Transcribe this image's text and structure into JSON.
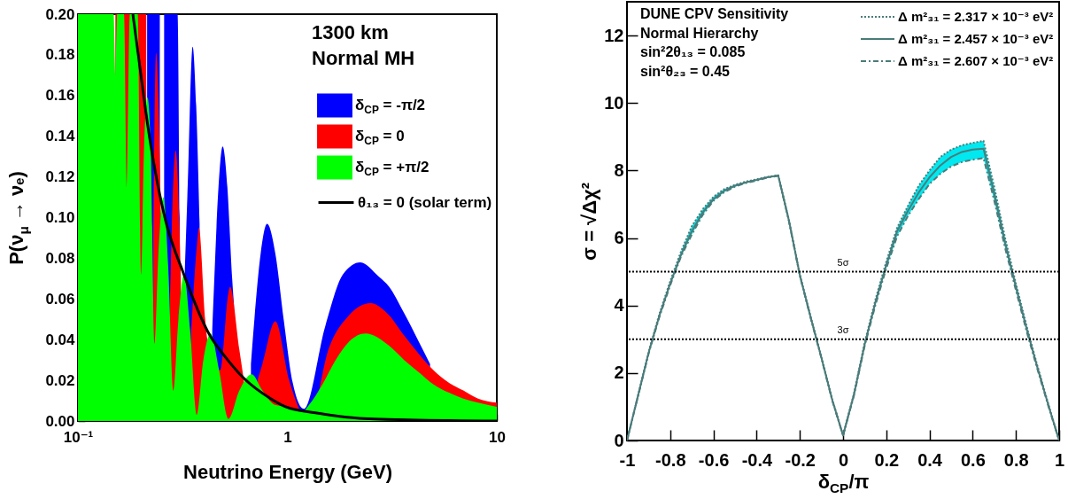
{
  "chart_data": [
    {
      "type": "area",
      "xlabel": "Neutrino Energy (GeV)",
      "ylabel": "P(ν$_{μ}$ → νₑ)",
      "log": "x",
      "xlim": [
        0.1,
        10
      ],
      "xticks": [
        {
          "value": 0.1,
          "label": "10⁻¹"
        },
        1,
        10
      ],
      "ylim": [
        0,
        0.2
      ],
      "yticks": [
        {
          "value": 0,
          "label": "0.00"
        },
        0.02,
        0.04,
        0.06,
        0.08,
        {
          "value": 0.1,
          "label": "0.10"
        },
        0.12,
        0.14,
        0.16,
        0.18,
        {
          "value": 0.2,
          "label": "0.20"
        }
      ],
      "legend": "top right",
      "annotations": [
        "1300 km",
        "Normal MH"
      ],
      "series": [
        {
          "name": "δ$_{CP}$ = -π/2",
          "color": "#0000ff",
          "x": [
            0.214,
            0.246,
            0.252,
            0.258,
            0.299,
            0.306,
            0.315,
            0.324,
            0.333,
            0.353,
            0.367,
            0.381,
            0.41,
            0.438,
            0.448,
            0.469,
            0.491,
            0.517,
            0.545,
            0.556,
            0.61,
            0.67,
            0.696,
            0.747,
            0.8,
            0.877,
            0.96,
            1.06,
            1.2,
            1.52,
            1.84,
            2.23,
            2.73,
            3.06,
            3.61,
            4.24,
            4.8
          ],
          "values": [
            0.2,
            0.2,
            null,
            0.2,
            0.2,
            0.1,
            null,
            0.075,
            0.11,
            0.184,
            0.155,
            0.097,
            null,
            0.045,
            0.07,
            0.115,
            0.135,
            0.115,
            0.07,
            0.057,
            null,
            0.028,
            0.05,
            0.083,
            0.097,
            0.082,
            0.05,
            0.019,
            0.006,
            0.047,
            0.072,
            0.078,
            0.071,
            0.066,
            0.053,
            0.039,
            0.028
          ]
        },
        {
          "name": "δ$_{CP}$ = 0",
          "color": "#ff0000",
          "x": [
            0.151,
            0.171,
            0.197,
            0.205,
            0.212,
            0.219,
            0.229,
            0.236,
            0.25,
            0.264,
            0.275,
            0.293,
            0.31,
            0.331,
            0.347,
            0.369,
            0.378,
            0.405,
            0.415,
            0.478,
            0.523,
            0.532,
            0.59,
            0.62,
            0.661,
            0.72,
            0.76,
            0.876,
            1.02,
            1.27,
            1.58,
            1.97,
            2.49,
            3.06,
            3.61,
            4.24,
            4.99,
            5.88,
            6.92,
            8.14,
            10
          ],
          "values": [
            0.2,
            0.2,
            0.2,
            0.2,
            0.2,
            null,
            0.09,
            0.181,
            0.1,
            null,
            0.06,
            0.133,
            0.07,
            null,
            0.042,
            0.085,
            0.095,
            0.05,
            0.04,
            0.025,
            0.063,
            0.066,
            0.035,
            0.02,
            null,
            0.02,
            0.028,
            0.049,
            0.02,
            0,
            0.036,
            0.052,
            0.058,
            0.052,
            0.042,
            0.033,
            0.025,
            0.019,
            0.015,
            0.011,
            0.009
          ]
        },
        {
          "name": "δ$_{CP}$ = +π/2",
          "color": "#00ff00",
          "x": [
            0.1,
            0.148,
            0.151,
            0.154,
            0.166,
            0.171,
            0.177,
            0.193,
            0.2,
            0.207,
            0.215,
            0.223,
            0.232,
            0.243,
            0.256,
            0.27,
            0.286,
            0.302,
            0.321,
            0.343,
            0.369,
            0.397,
            0.43,
            0.472,
            0.523,
            0.59,
            0.675,
            0.76,
            0.87,
            1.0,
            1.19,
            1.27,
            1.47,
            1.7,
            1.97,
            2.36,
            3.06,
            3.61,
            4.24,
            4.99,
            5.88,
            6.92,
            8.14,
            10
          ],
          "values": [
            0.2,
            0.2,
            0.169,
            0.2,
            0.2,
            0.114,
            0.2,
            0.2,
            0.072,
            0.135,
            0.159,
            0.13,
            0.038,
            0.085,
            0.11,
            0.075,
            0.015,
            0.05,
            0.072,
            0.045,
            0.003,
            0.03,
            0.043,
            0.025,
            0.001,
            0.015,
            0.023,
            0.015,
            0.008,
            0.007,
            0.005,
            0.008,
            0.018,
            0.03,
            0.039,
            0.043,
            0.037,
            0.03,
            0.024,
            0.018,
            0.014,
            0.011,
            0.009,
            0.007
          ]
        },
        {
          "name": "θ₁₃ = 0 (solar term)",
          "type": "line",
          "color": "#000000",
          "x": [
            0.183,
            0.2,
            0.215,
            0.23,
            0.245,
            0.263,
            0.318,
            0.427,
            0.51,
            0.62,
            0.832,
            0.98,
            1.36,
            1.88,
            2.6,
            10
          ],
          "values": [
            0.2,
            0.17,
            0.146,
            0.127,
            0.112,
            0.098,
            0.073,
            0.042,
            0.031,
            0.021,
            0.011,
            0.007,
            0.004,
            0.002,
            0.001,
            0
          ]
        }
      ]
    },
    {
      "type": "line",
      "xlabel": "δ$_{CP}$/π",
      "ylabel": "σ = √Δχ²",
      "xlim": [
        -1,
        1
      ],
      "xticks": [
        -1,
        -0.8,
        -0.6,
        -0.4,
        -0.2,
        0,
        0.2,
        0.4,
        0.6,
        0.8,
        1
      ],
      "ylim": [
        0,
        13
      ],
      "yticks": [
        0,
        2,
        4,
        6,
        8,
        10,
        12
      ],
      "legend": "top right",
      "annotations": [
        "DUNE CPV Sensitivity",
        "Normal Hierarchy",
        "sin²2θ₁₃ = 0.085",
        "sin²θ₂₃ = 0.45"
      ],
      "ref_lines": [
        {
          "axis": "y",
          "value": 5,
          "label": "5σ",
          "color": "#000000",
          "line_style": "dotted"
        },
        {
          "axis": "y",
          "value": 3,
          "label": "3σ",
          "color": "#000000",
          "line_style": "dotted"
        }
      ],
      "x": [
        -1,
        -0.95,
        -0.9,
        -0.85,
        -0.8,
        -0.75,
        -0.7,
        -0.65,
        -0.6,
        -0.55,
        -0.5,
        -0.45,
        -0.4,
        -0.35,
        -0.3,
        -0.25,
        -0.2,
        -0.15,
        -0.1,
        -0.05,
        0,
        0.05,
        0.1,
        0.15,
        0.2,
        0.25,
        0.3,
        0.35,
        0.4,
        0.45,
        0.5,
        0.55,
        0.6,
        0.65,
        0.7,
        0.75,
        0.8,
        0.85,
        0.9,
        0.95,
        1
      ],
      "series": [
        {
          "name": "Δ m²₃₁ = 2.317 × 10⁻³ eV²",
          "color": "#4a7c7a",
          "line_style": "dotted",
          "values": [
            0,
            1.3,
            2.62,
            3.75,
            4.72,
            5.6,
            6.35,
            6.85,
            7.22,
            7.45,
            7.58,
            7.67,
            7.74,
            7.81,
            7.86,
            6.52,
            4.92,
            3.67,
            2.47,
            1.22,
            0.15,
            1.38,
            2.9,
            4.18,
            5.3,
            6.3,
            6.95,
            7.55,
            8.0,
            8.4,
            8.62,
            8.75,
            8.82,
            8.88,
            7.5,
            6.0,
            4.65,
            3.38,
            2.2,
            1.08,
            0
          ]
        },
        {
          "name": "Δ m²₃₁ = 2.457 × 10⁻³ eV²",
          "color": "#4a7c7a",
          "line_style": "solid",
          "values": [
            0,
            1.3,
            2.6,
            3.7,
            4.65,
            5.5,
            6.2,
            6.75,
            7.15,
            7.4,
            7.55,
            7.65,
            7.72,
            7.8,
            7.85,
            6.5,
            4.9,
            3.65,
            2.45,
            1.2,
            0.15,
            1.35,
            2.85,
            4.1,
            5.2,
            6.2,
            6.8,
            7.35,
            7.8,
            8.15,
            8.4,
            8.55,
            8.62,
            8.65,
            7.3,
            5.85,
            4.55,
            3.3,
            2.15,
            1.05,
            0
          ],
          "lower": [
            0,
            1.28,
            2.57,
            3.66,
            4.6,
            5.45,
            6.1,
            6.68,
            7.1,
            7.36,
            7.52,
            7.63,
            7.7,
            7.79,
            7.84,
            6.48,
            4.88,
            3.63,
            2.43,
            1.18,
            0.15,
            1.32,
            2.8,
            4.02,
            5.1,
            6.05,
            6.65,
            7.15,
            7.6,
            7.9,
            8.12,
            8.25,
            8.32,
            8.37,
            7.1,
            5.7,
            4.45,
            3.22,
            2.1,
            1.02,
            0
          ],
          "upper": [
            0,
            1.3,
            2.62,
            3.75,
            4.72,
            5.6,
            6.35,
            6.85,
            7.22,
            7.45,
            7.58,
            7.67,
            7.74,
            7.81,
            7.86,
            6.52,
            4.92,
            3.67,
            2.47,
            1.22,
            0.15,
            1.38,
            2.9,
            4.18,
            5.3,
            6.3,
            6.95,
            7.55,
            8.0,
            8.4,
            8.62,
            8.75,
            8.82,
            8.88,
            7.5,
            6.0,
            4.65,
            3.38,
            2.2,
            1.08,
            0
          ]
        },
        {
          "name": "Δ m²₃₁ = 2.607 × 10⁻³ eV²",
          "color": "#4a7c7a",
          "line_style": "dashed",
          "values": [
            0,
            1.28,
            2.57,
            3.66,
            4.6,
            5.45,
            6.1,
            6.68,
            7.1,
            7.36,
            7.52,
            7.63,
            7.7,
            7.79,
            7.84,
            6.48,
            4.88,
            3.63,
            2.43,
            1.18,
            0.15,
            1.32,
            2.8,
            4.02,
            5.1,
            6.05,
            6.65,
            7.15,
            7.6,
            7.9,
            8.12,
            8.25,
            8.32,
            8.37,
            7.1,
            5.7,
            4.45,
            3.22,
            2.1,
            1.02,
            0
          ]
        }
      ]
    }
  ]
}
